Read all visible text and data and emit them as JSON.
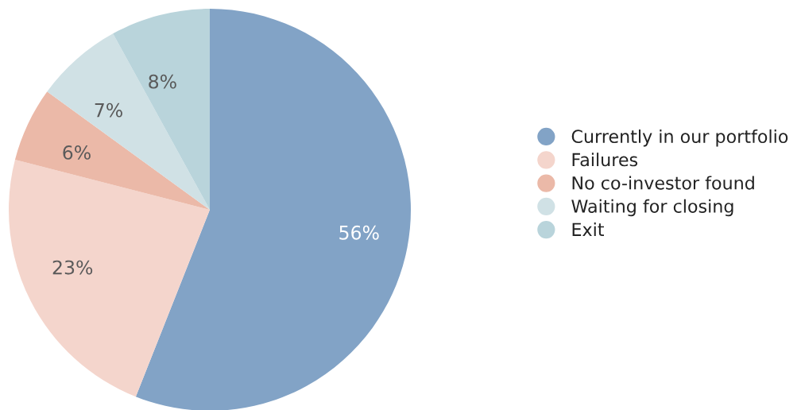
{
  "chart_data": {
    "type": "pie",
    "categories": [
      "Currently in our portfolio",
      "Failures",
      "No co-investor found",
      "Waiting for closing",
      "Exit"
    ],
    "values": [
      56,
      23,
      6,
      7,
      8
    ],
    "colors": [
      "#82a3c6",
      "#f4d5cc",
      "#ebb9a8",
      "#d0e1e5",
      "#b9d4db"
    ],
    "value_labels": [
      "56%",
      "23%",
      "6%",
      "7%",
      "8%"
    ],
    "legend": "right"
  }
}
